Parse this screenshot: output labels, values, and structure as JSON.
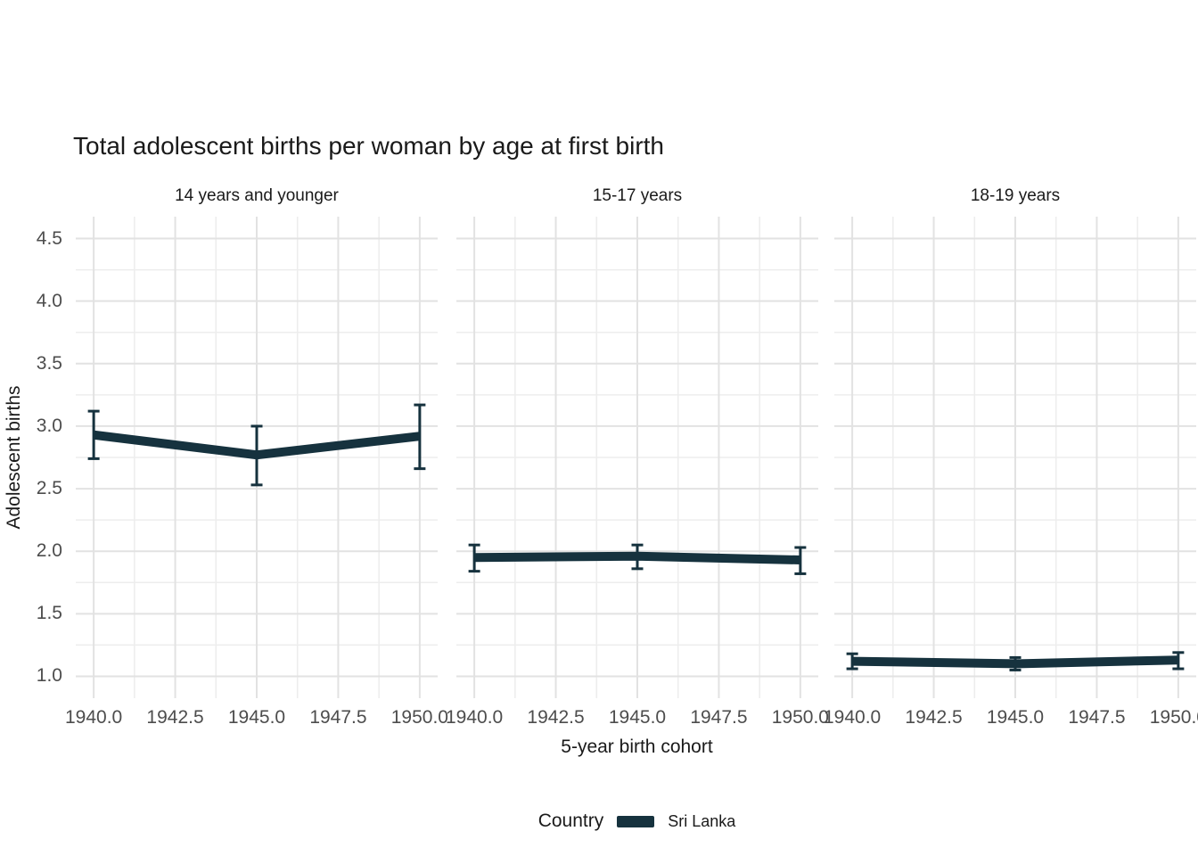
{
  "title": "Total adolescent births per woman by age at first birth",
  "axes": {
    "x_title": "5-year birth cohort",
    "y_title": "Adolescent births",
    "x_tick_labels": [
      "1940.0",
      "1942.5",
      "1945.0",
      "1947.5",
      "1950.0"
    ],
    "y_tick_labels": [
      "1.0",
      "1.5",
      "2.0",
      "2.5",
      "3.0",
      "3.5",
      "4.0",
      "4.5"
    ]
  },
  "legend": {
    "title": "Country",
    "entries": [
      {
        "label": "Sri Lanka",
        "color": "#16323e"
      }
    ]
  },
  "colors": {
    "series": "#16323e",
    "grid_major": "#e2e2e2",
    "grid_minor": "#ededed",
    "tick_label": "#4d4d4d",
    "text": "#1a1a1a",
    "background": "#ffffff"
  },
  "chart_data": {
    "type": "line",
    "title": "Total adolescent births per woman by age at first birth",
    "xlabel": "5-year birth cohort",
    "ylabel": "Adolescent births",
    "legend_title": "Country",
    "series_name": "Sri Lanka",
    "grid": true,
    "legend_position": "bottom",
    "error_bars": true,
    "x_domain": [
      1939.45,
      1950.55
    ],
    "y_domain": [
      0.825,
      4.675
    ],
    "x_major_ticks": [
      1940,
      1942.5,
      1945,
      1947.5,
      1950
    ],
    "x_minor_ticks": [
      1941.25,
      1943.75,
      1946.25,
      1948.75
    ],
    "y_major_ticks": [
      1.0,
      1.5,
      2.0,
      2.5,
      3.0,
      3.5,
      4.0,
      4.5
    ],
    "y_minor_ticks": [
      1.25,
      1.75,
      2.25,
      2.75,
      3.25,
      3.75,
      4.25
    ],
    "facets": [
      {
        "label": "14 years and younger",
        "x": [
          1940,
          1945,
          1950
        ],
        "y": [
          2.93,
          2.77,
          2.92
        ],
        "y_low": [
          2.74,
          2.53,
          2.66
        ],
        "y_high": [
          3.12,
          3.0,
          3.17
        ]
      },
      {
        "label": "15-17 years",
        "x": [
          1940,
          1945,
          1950
        ],
        "y": [
          1.95,
          1.96,
          1.93
        ],
        "y_low": [
          1.84,
          1.86,
          1.82
        ],
        "y_high": [
          2.05,
          2.05,
          2.03
        ]
      },
      {
        "label": "18-19 years",
        "x": [
          1940,
          1945,
          1950
        ],
        "y": [
          1.12,
          1.1,
          1.13
        ],
        "y_low": [
          1.06,
          1.05,
          1.06
        ],
        "y_high": [
          1.18,
          1.15,
          1.19
        ]
      }
    ]
  }
}
